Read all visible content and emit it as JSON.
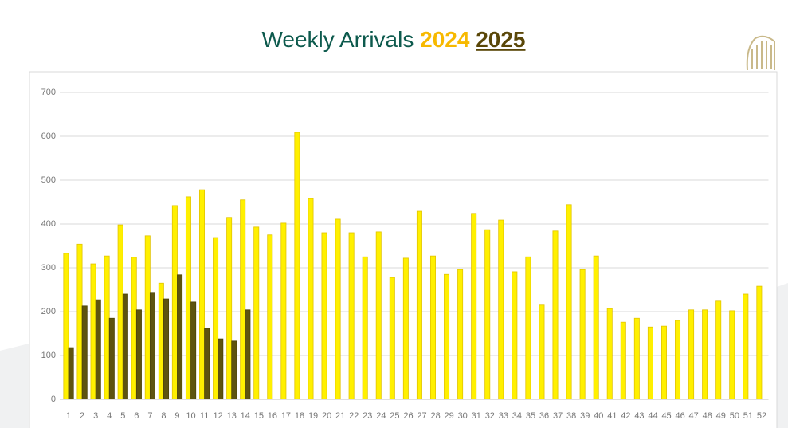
{
  "chart_data": {
    "type": "bar",
    "title": "Weekly Arrivals",
    "categories": [
      "1",
      "2",
      "3",
      "4",
      "5",
      "6",
      "7",
      "8",
      "9",
      "10",
      "11",
      "12",
      "13",
      "14",
      "15",
      "16",
      "17",
      "18",
      "19",
      "20",
      "21",
      "22",
      "23",
      "24",
      "25",
      "26",
      "27",
      "28",
      "29",
      "30",
      "31",
      "32",
      "33",
      "34",
      "35",
      "36",
      "37",
      "38",
      "39",
      "40",
      "41",
      "42",
      "43",
      "44",
      "45",
      "46",
      "47",
      "48",
      "49",
      "50",
      "51",
      "52"
    ],
    "series": [
      {
        "name": "2024",
        "color": "#fff000",
        "label_color": "#f7b900",
        "values": [
          333,
          354,
          309,
          327,
          398,
          324,
          373,
          265,
          442,
          462,
          478,
          369,
          415,
          455,
          393,
          375,
          402,
          609,
          458,
          380,
          411,
          380,
          325,
          382,
          278,
          322,
          429,
          327,
          285,
          296,
          424,
          387,
          409,
          291,
          325,
          215,
          384,
          444,
          296,
          327,
          207,
          176,
          185,
          165,
          167,
          180,
          204,
          204,
          224,
          202,
          240,
          258
        ]
      },
      {
        "name": "2025",
        "color": "#5e5410",
        "label_color": "#5a4708",
        "values": [
          118,
          213,
          227,
          185,
          240,
          204,
          244,
          229,
          284,
          222,
          162,
          138,
          133,
          204,
          null,
          null,
          null,
          null,
          null,
          null,
          null,
          null,
          null,
          null,
          null,
          null,
          null,
          null,
          null,
          null,
          null,
          null,
          null,
          null,
          null,
          null,
          null,
          null,
          null,
          null,
          null,
          null,
          null,
          null,
          null,
          null,
          null,
          null,
          null,
          null,
          null,
          null
        ]
      }
    ],
    "ylim": [
      0,
      700
    ],
    "yticks": [
      0,
      100,
      200,
      300,
      400,
      500,
      600,
      700
    ],
    "grid": true
  }
}
